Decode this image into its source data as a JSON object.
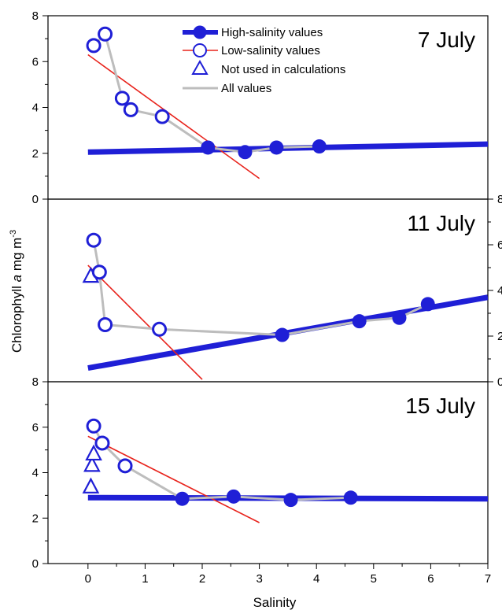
{
  "chart_data": {
    "type": "scatter",
    "xlabel": "Salinity",
    "ylabel_main": "Chlorophyll ",
    "ylabel_italic": "a",
    "ylabel_units": " mg m",
    "ylabel_sup": "-3",
    "xlim": [
      -0.7,
      7
    ],
    "xticks": [
      "0",
      "1",
      "2",
      "3",
      "4",
      "5",
      "6",
      "7"
    ],
    "legend": {
      "position": "top-center",
      "entries": [
        {
          "label": "High-salinity values",
          "style": "high"
        },
        {
          "label": "Low-salinity values",
          "style": "low"
        },
        {
          "label": "Not used in calculations",
          "style": "excluded"
        },
        {
          "label": "All values",
          "style": "all"
        }
      ]
    },
    "colors": {
      "high": "#1f1fd6",
      "low": "#e8231c",
      "all": "#bdbdbd"
    },
    "panels": [
      {
        "label": "7 July",
        "ylim": [
          0,
          8
        ],
        "yaxis": "left",
        "yticks": [
          "0",
          "2",
          "4",
          "6",
          "8"
        ],
        "high_salinity": [
          [
            2.1,
            2.25
          ],
          [
            2.75,
            2.05
          ],
          [
            3.3,
            2.25
          ],
          [
            4.05,
            2.3
          ]
        ],
        "low_salinity": [
          [
            0.1,
            6.7
          ],
          [
            0.3,
            7.2
          ],
          [
            0.6,
            4.4
          ],
          [
            0.75,
            3.9
          ],
          [
            1.3,
            3.6
          ]
        ],
        "not_used": [],
        "all_values": [
          [
            0.1,
            6.7
          ],
          [
            0.3,
            7.2
          ],
          [
            0.6,
            4.4
          ],
          [
            0.75,
            3.9
          ],
          [
            1.3,
            3.6
          ],
          [
            2.1,
            2.25
          ],
          [
            2.75,
            2.05
          ],
          [
            3.3,
            2.25
          ],
          [
            4.05,
            2.3
          ]
        ],
        "high_fit": [
          [
            0,
            2.05
          ],
          [
            7,
            2.4
          ]
        ],
        "low_fit": [
          [
            0,
            6.3
          ],
          [
            3,
            0.9
          ]
        ]
      },
      {
        "label": "11 July",
        "ylim": [
          0,
          8
        ],
        "yaxis": "right",
        "yticks": [
          "0",
          "2",
          "4",
          "6",
          "8"
        ],
        "high_salinity": [
          [
            3.4,
            2.05
          ],
          [
            4.75,
            2.65
          ],
          [
            5.45,
            2.8
          ],
          [
            5.95,
            3.4
          ]
        ],
        "low_salinity": [
          [
            0.1,
            6.2
          ],
          [
            0.2,
            4.8
          ],
          [
            0.3,
            2.5
          ],
          [
            1.25,
            2.3
          ]
        ],
        "not_used": [
          [
            0.05,
            4.65
          ]
        ],
        "all_values": [
          [
            0.1,
            6.2
          ],
          [
            0.2,
            4.8
          ],
          [
            0.3,
            2.5
          ],
          [
            1.25,
            2.3
          ],
          [
            3.4,
            2.05
          ],
          [
            4.75,
            2.65
          ],
          [
            5.45,
            2.8
          ],
          [
            5.95,
            3.4
          ]
        ],
        "high_fit": [
          [
            0,
            0.6
          ],
          [
            7,
            3.7
          ]
        ],
        "low_fit": [
          [
            0,
            5.1
          ],
          [
            2,
            0.1
          ]
        ]
      },
      {
        "label": "15 July",
        "ylim": [
          0,
          8
        ],
        "yaxis": "left",
        "yticks": [
          "0",
          "2",
          "4",
          "6",
          "8"
        ],
        "high_salinity": [
          [
            1.65,
            2.85
          ],
          [
            2.55,
            2.95
          ],
          [
            3.55,
            2.8
          ],
          [
            4.6,
            2.9
          ]
        ],
        "low_salinity": [
          [
            0.1,
            6.05
          ],
          [
            0.25,
            5.3
          ],
          [
            0.65,
            4.3
          ]
        ],
        "not_used": [
          [
            0.05,
            3.4
          ],
          [
            0.07,
            4.35
          ],
          [
            0.1,
            4.85
          ]
        ],
        "all_values": [
          [
            0.1,
            6.05
          ],
          [
            0.25,
            5.3
          ],
          [
            0.65,
            4.3
          ],
          [
            1.65,
            2.85
          ],
          [
            2.55,
            2.95
          ],
          [
            3.55,
            2.8
          ],
          [
            4.6,
            2.9
          ]
        ],
        "high_fit": [
          [
            0,
            2.9
          ],
          [
            7,
            2.85
          ]
        ],
        "low_fit": [
          [
            0,
            5.6
          ],
          [
            3,
            1.8
          ]
        ]
      }
    ]
  }
}
